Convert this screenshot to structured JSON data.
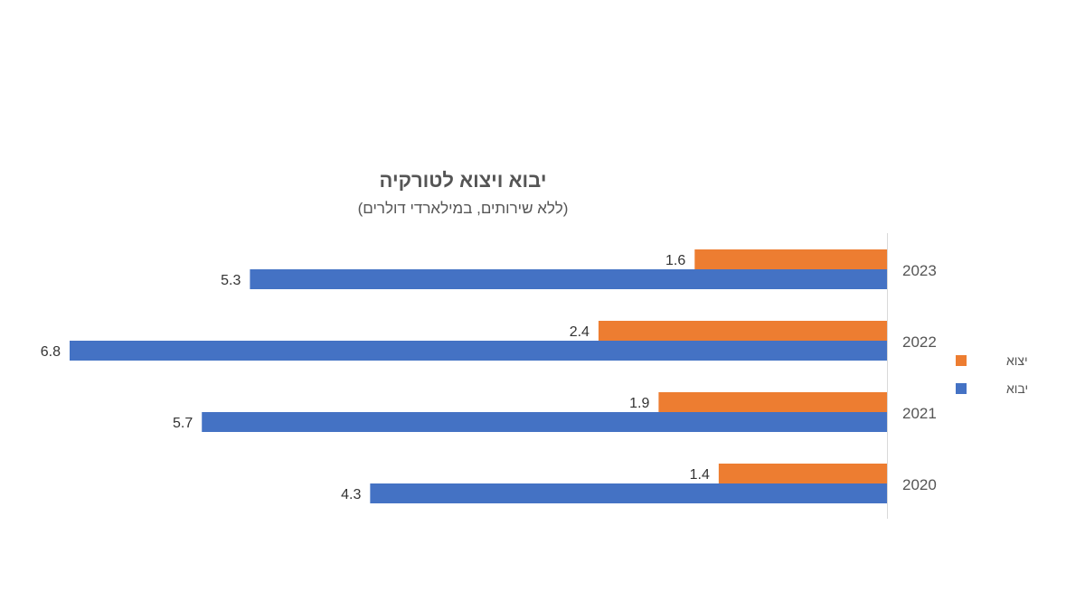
{
  "chart_data": {
    "type": "bar",
    "orientation": "horizontal",
    "title": "יבוא ויצוא לטורקיה",
    "subtitle": "(ללא שירותים, במילארדי דולרים)",
    "categories": [
      "2023",
      "2022",
      "2021",
      "2020"
    ],
    "series": [
      {
        "name": "יצוא",
        "color": "#ED7D31",
        "values": [
          1.6,
          2.4,
          1.9,
          1.4
        ]
      },
      {
        "name": "יבוא",
        "color": "#4472C4",
        "values": [
          5.3,
          6.8,
          5.7,
          4.3
        ]
      }
    ],
    "xlim": [
      0,
      6.8
    ],
    "bar_direction": "right-to-left",
    "axis_side": "right",
    "legend_position": "right",
    "grid": false,
    "data_labels": true
  }
}
